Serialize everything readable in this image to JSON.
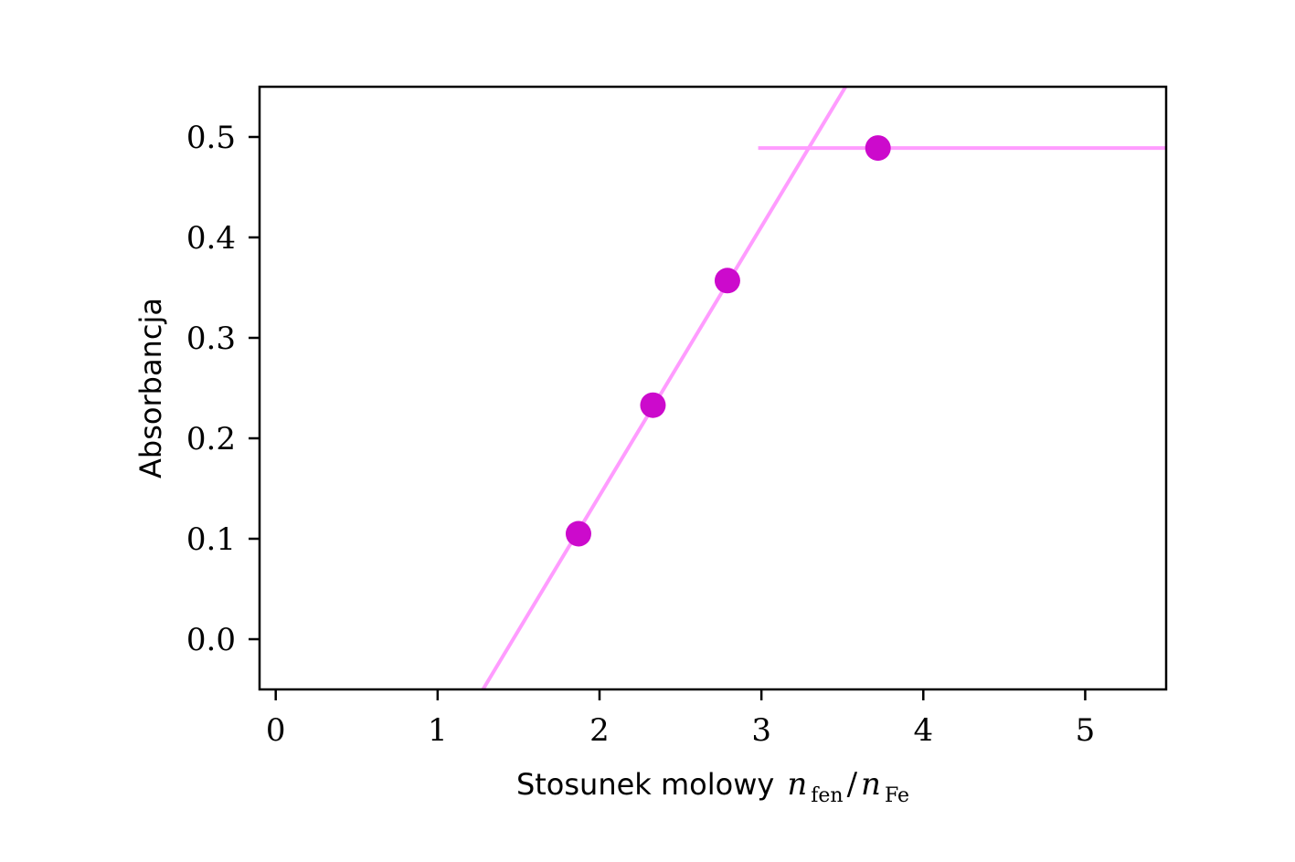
{
  "chart_data": {
    "type": "scatter",
    "xlabel": "Stosunek molowy",
    "xlabel_math": {
      "n1": "n",
      "sub1": "fen",
      "slash": "/",
      "n2": "n",
      "sub2": "Fe"
    },
    "ylabel": "Absorbancja",
    "xlim": [
      -0.1,
      5.5
    ],
    "ylim": [
      -0.05,
      0.55
    ],
    "xticks": [
      0,
      1,
      2,
      3,
      4,
      5
    ],
    "xtick_labels": [
      "0",
      "1",
      "2",
      "3",
      "4",
      "5"
    ],
    "yticks": [
      0.0,
      0.1,
      0.2,
      0.3,
      0.4,
      0.5
    ],
    "ytick_labels": [
      "0.0",
      "0.1",
      "0.2",
      "0.3",
      "0.4",
      "0.5"
    ],
    "grid": false,
    "points": {
      "x": [
        1.87,
        2.33,
        2.79,
        3.72
      ],
      "y": [
        0.105,
        0.233,
        0.357,
        0.489
      ],
      "color": "#cc0acc"
    },
    "fit_lines": [
      {
        "x": [
          1.28,
          3.52
        ],
        "y": [
          -0.05,
          0.55
        ],
        "color": "#ff9cff"
      },
      {
        "x": [
          2.98,
          5.5
        ],
        "y": [
          0.489,
          0.489
        ],
        "color": "#ff9cff"
      }
    ]
  }
}
